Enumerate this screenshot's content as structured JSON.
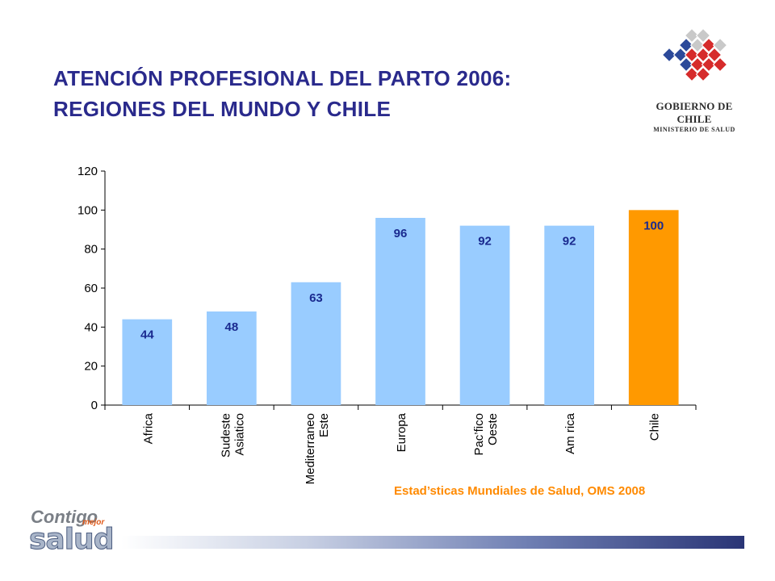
{
  "header": {
    "title_line1": "ATENCIÓN PROFESIONAL DEL PARTO 2006:",
    "title_line2": "REGIONES DEL MUNDO Y CHILE"
  },
  "logo": {
    "line1": "GOBIERNO DE CHILE",
    "line2": "MINISTERIO DE SALUD"
  },
  "footer": {
    "brand_contigo": "Contigo",
    "brand_mejor": "mejor",
    "brand_salud": "salud"
  },
  "chart_data": {
    "type": "bar",
    "title": "",
    "xlabel": "",
    "ylabel": "",
    "ylim": [
      0,
      120
    ],
    "yticks": [
      0,
      20,
      40,
      60,
      80,
      100,
      120
    ],
    "categories": [
      [
        "Africa"
      ],
      [
        "Sudeste",
        "Asiatico"
      ],
      [
        "Mediterraneo",
        "Este"
      ],
      [
        "Europa"
      ],
      [
        "Pac’fico",
        "Oeste"
      ],
      [
        "Am  rica"
      ],
      [
        "Chile"
      ]
    ],
    "values": [
      44,
      48,
      63,
      96,
      92,
      92,
      100
    ],
    "data_labels": [
      "44",
      "48",
      "63",
      "96",
      "92",
      "92",
      "100"
    ],
    "colors": [
      "#99ccff",
      "#99ccff",
      "#99ccff",
      "#99ccff",
      "#99ccff",
      "#99ccff",
      "#ff9900"
    ],
    "label_color": "#1a2a8f",
    "source": "Estad’sticas Mundiales de Salud, OMS 2008"
  }
}
